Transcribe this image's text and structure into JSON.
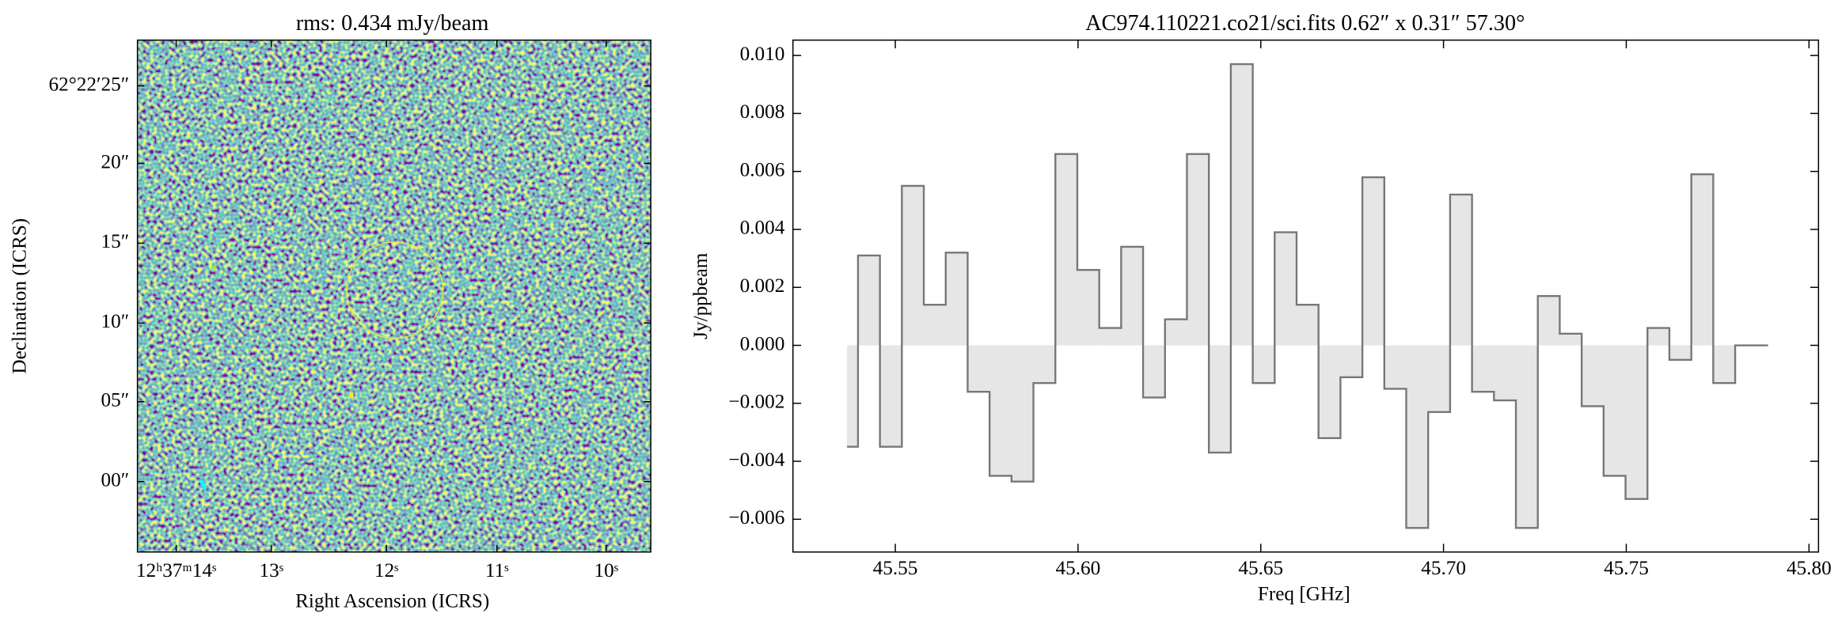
{
  "chart_data": [
    {
      "type": "image",
      "title": "rms: 0.434 mJy/beam",
      "xlabel": "Right Ascension (ICRS)",
      "ylabel": "Declination (ICRS)",
      "xtick_labels": [
        "12ʰ37ᵐ14ˢ",
        "13ˢ",
        "12ˢ",
        "11ˢ",
        "10ˢ"
      ],
      "ytick_labels": [
        "62°22′25″",
        "20″",
        "15″",
        "10″",
        "05″",
        "00″"
      ]
    },
    {
      "type": "step",
      "title": "AC974.110221.co21/sci.fits 0.62″ x 0.31″ 57.30°",
      "xlabel": "Freq [GHz]",
      "ylabel": "Jy/ppbeam",
      "color": "#777777",
      "fill": "#e6e6e6",
      "x": [
        45.5368,
        45.5428,
        45.5488,
        45.5548,
        45.5608,
        45.5668,
        45.5728,
        45.5788,
        45.5848,
        45.5908,
        45.5968,
        45.6028,
        45.6088,
        45.6148,
        45.6208,
        45.6268,
        45.6328,
        45.6388,
        45.6448,
        45.6508,
        45.6568,
        45.6628,
        45.6688,
        45.6748,
        45.6808,
        45.6868,
        45.6928,
        45.6988,
        45.7048,
        45.7108,
        45.7168,
        45.7228,
        45.7288,
        45.7348,
        45.7408,
        45.7468,
        45.7528,
        45.7588,
        45.7648,
        45.7708,
        45.7768,
        45.7828,
        45.7888
      ],
      "values": [
        -0.0035,
        0.0031,
        -0.0035,
        0.0055,
        0.0014,
        0.0032,
        -0.0016,
        -0.0045,
        -0.0047,
        -0.0013,
        0.0066,
        0.0026,
        0.0006,
        0.0034,
        -0.0018,
        0.0009,
        0.0066,
        -0.0037,
        0.0097,
        -0.0013,
        0.0039,
        0.0014,
        -0.0032,
        -0.0011,
        0.0058,
        -0.0015,
        -0.0063,
        -0.0023,
        0.0052,
        -0.0016,
        -0.0019,
        -0.0063,
        0.0017,
        0.0004,
        -0.0021,
        -0.0045,
        -0.0053,
        0.0006,
        -0.0005,
        0.0059,
        -0.0013,
        0,
        0
      ],
      "xlim": [
        45.522,
        45.8026
      ],
      "ylim": [
        -0.00713,
        0.01053
      ],
      "xticks": [
        45.55,
        {
          "value": 45.6,
          "label": "45.60"
        },
        45.65,
        {
          "value": 45.7,
          "label": "45.70"
        },
        45.75,
        {
          "value": 45.8,
          "label": "45.80"
        }
      ],
      "yticks": [
        {
          "value": -0.006,
          "label": "−0.006"
        },
        {
          "value": -0.004,
          "label": "−0.004"
        },
        {
          "value": -0.002,
          "label": "−0.002"
        },
        {
          "value": 0,
          "label": "0.000"
        },
        0.002,
        0.004,
        0.006,
        0.008,
        {
          "value": 0.01,
          "label": "0.010"
        }
      ]
    }
  ]
}
